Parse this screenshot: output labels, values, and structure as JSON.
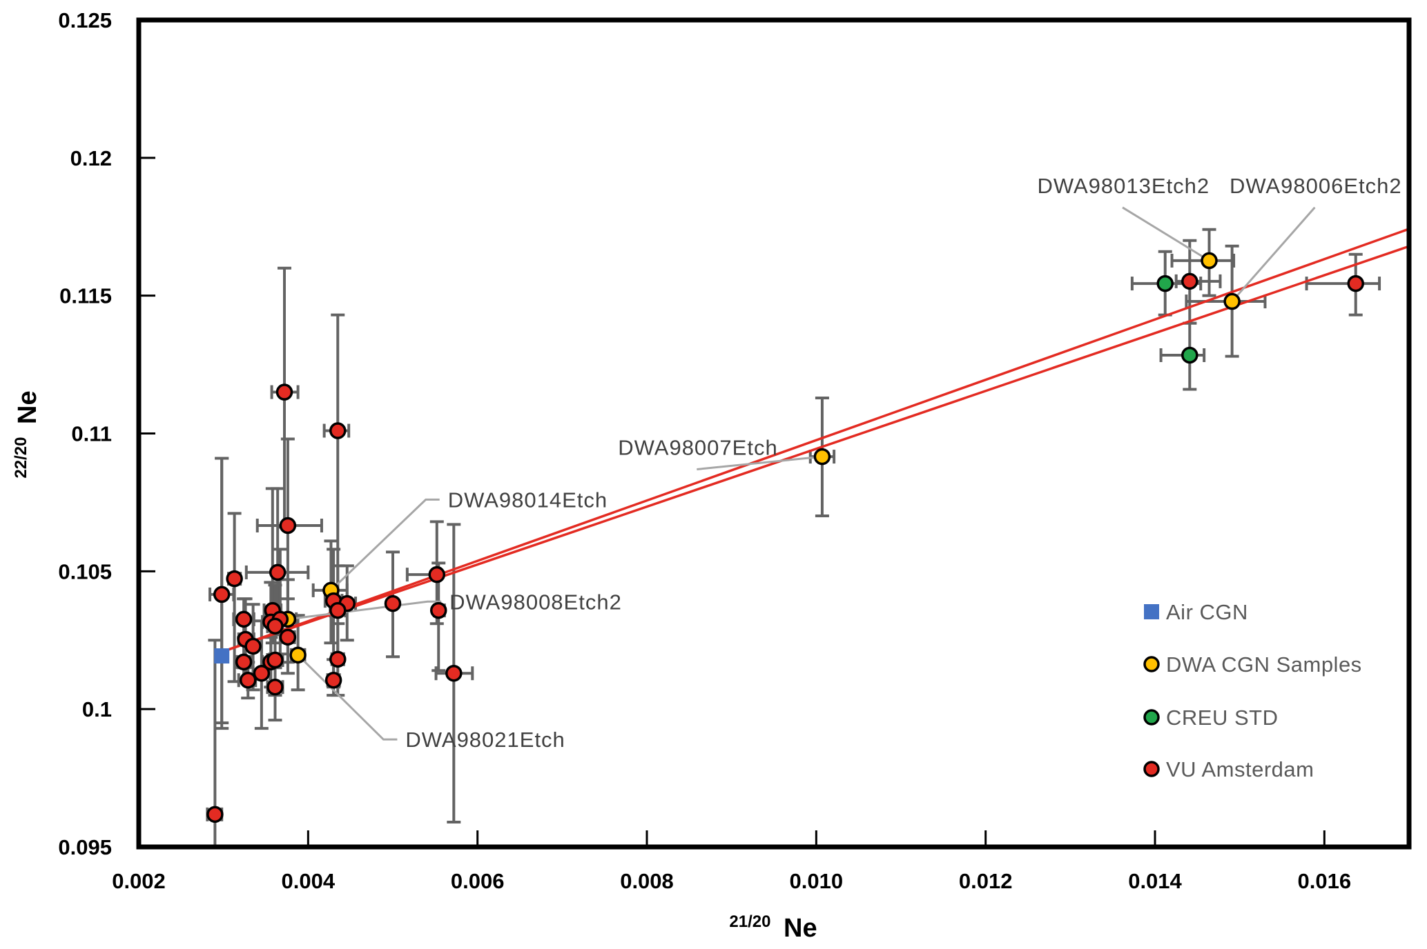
{
  "chart_data": {
    "type": "scatter",
    "title": "",
    "xlabel": "Ne",
    "xlabel_superscript": "21/20",
    "ylabel": "Ne",
    "ylabel_superscript": "22/20",
    "xlim": [
      0.002,
      0.017
    ],
    "ylim": [
      0.095,
      0.125
    ],
    "xticks": [
      0.002,
      0.004,
      0.006,
      0.008,
      0.01,
      0.012,
      0.014,
      0.016
    ],
    "xtick_labels": [
      "0.002",
      "0.004",
      "0.006",
      "0.008",
      "0.010",
      "0.012",
      "0.014",
      "0.016"
    ],
    "yticks": [
      0.095,
      0.1,
      0.105,
      0.11,
      0.115,
      0.12,
      0.125
    ],
    "ytick_labels": [
      "0.095",
      "0.1",
      "0.105",
      "0.11",
      "0.115",
      "0.12",
      "0.125"
    ],
    "grid": false,
    "legend_position": "bottom-right",
    "colors": {
      "Air CGN": "#4472c4",
      "DWA CGN Samples": "#ffc000",
      "CREU STD": "#21a64b",
      "VU Amsterdam": "#e32b22",
      "fit_line": "#e32b22",
      "error_bar": "#636363",
      "leader": "#a6a6a6"
    },
    "series": [
      {
        "name": "Air CGN",
        "marker": "square",
        "points": [
          {
            "x": 0.00298,
            "y": 0.10193,
            "xerr": [
              0.00298,
              0.00298
            ],
            "yerr": [
              0.0993,
              0.1091
            ]
          }
        ]
      },
      {
        "name": "DWA CGN Samples",
        "marker": "circle",
        "points": [
          {
            "x": 0.00376,
            "y": 0.10326,
            "xerr": [
              0.00366,
              0.00386
            ],
            "yerr": [
              0.1017,
              0.1047
            ],
            "label": "DWA98008Etch2"
          },
          {
            "x": 0.00388,
            "y": 0.10196,
            "xerr": [
              0.0038,
              0.00396
            ],
            "yerr": [
              0.1007,
              0.1034
            ],
            "label": "DWA98021Etch"
          },
          {
            "x": 0.00427,
            "y": 0.10431,
            "xerr": [
              0.00406,
              0.00446
            ],
            "yerr": [
              0.1024,
              0.1061
            ],
            "label": "DWA98014Etch"
          },
          {
            "x": 0.01007,
            "y": 0.10916,
            "xerr": [
              0.00993,
              0.01021
            ],
            "yerr": [
              0.10701,
              0.11129
            ],
            "label": "DWA98007Etch"
          },
          {
            "x": 0.01464,
            "y": 0.11627,
            "xerr": [
              0.0142,
              0.01493
            ],
            "yerr": [
              0.115,
              0.1174
            ],
            "label": "DWA98013Etch2"
          },
          {
            "x": 0.01491,
            "y": 0.11479,
            "xerr": [
              0.01437,
              0.0153
            ],
            "yerr": [
              0.1128,
              0.1168
            ],
            "label": "DWA98006Etch2"
          }
        ]
      },
      {
        "name": "CREU STD",
        "marker": "circle",
        "points": [
          {
            "x": 0.01412,
            "y": 0.11544,
            "xerr": [
              0.01373,
              0.01454
            ],
            "yerr": [
              0.1143,
              0.1166
            ]
          },
          {
            "x": 0.01441,
            "y": 0.11284,
            "xerr": [
              0.01407,
              0.01458
            ],
            "yerr": [
              0.1116,
              0.114
            ]
          }
        ]
      },
      {
        "name": "VU Amsterdam",
        "marker": "circle",
        "points": [
          {
            "x": 0.00372,
            "y": 0.1115,
            "xerr": [
              0.00357,
              0.00388
            ],
            "yerr": [
              0.1066,
              0.116
            ]
          },
          {
            "x": 0.00435,
            "y": 0.1101,
            "xerr": [
              0.00419,
              0.00448
            ],
            "yerr": [
              0.1038,
              0.1143
            ]
          },
          {
            "x": 0.00376,
            "y": 0.10666,
            "xerr": [
              0.0034,
              0.00416
            ],
            "yerr": [
              0.1034,
              0.1098
            ]
          },
          {
            "x": 0.00313,
            "y": 0.10473,
            "xerr": [
              0.00306,
              0.0032
            ],
            "yerr": [
              0.101,
              0.1071
            ]
          },
          {
            "x": 0.00298,
            "y": 0.10416,
            "xerr": [
              0.00284,
              0.00312
            ],
            "yerr": [
              0.0995,
              0.1091
            ]
          },
          {
            "x": 0.00364,
            "y": 0.10496,
            "xerr": [
              0.00327,
              0.004
            ],
            "yerr": [
              0.1027,
              0.108
            ]
          },
          {
            "x": 0.00324,
            "y": 0.10326,
            "xerr": [
              0.00312,
              0.00336
            ],
            "yerr": [
              0.1015,
              0.104
            ]
          },
          {
            "x": 0.00326,
            "y": 0.10253,
            "xerr": [
              0.00318,
              0.00336
            ],
            "yerr": [
              0.101,
              0.104
            ]
          },
          {
            "x": 0.00335,
            "y": 0.10228,
            "xerr": [
              0.00325,
              0.00345
            ],
            "yerr": [
              0.1007,
              0.1038
            ]
          },
          {
            "x": 0.00324,
            "y": 0.10171,
            "xerr": [
              0.00316,
              0.00332
            ],
            "yerr": [
              0.101,
              0.1026
            ]
          },
          {
            "x": 0.00329,
            "y": 0.10105,
            "xerr": [
              0.00318,
              0.00338
            ],
            "yerr": [
              0.1004,
              0.1017
            ]
          },
          {
            "x": 0.00345,
            "y": 0.1013,
            "xerr": [
              0.00335,
              0.00355
            ],
            "yerr": [
              0.0993,
              0.1032
            ]
          },
          {
            "x": 0.00356,
            "y": 0.10171,
            "xerr": [
              0.00346,
              0.00366
            ],
            "yerr": [
              0.1008,
              0.1026
            ]
          },
          {
            "x": 0.00361,
            "y": 0.10178,
            "xerr": [
              0.00352,
              0.0037
            ],
            "yerr": [
              0.1005,
              0.103
            ]
          },
          {
            "x": 0.00361,
            "y": 0.1008,
            "xerr": [
              0.00352,
              0.0037
            ],
            "yerr": [
              0.0996,
              0.102
            ]
          },
          {
            "x": 0.00358,
            "y": 0.10358,
            "xerr": [
              0.00348,
              0.00368
            ],
            "yerr": [
              0.1024,
              0.108
            ]
          },
          {
            "x": 0.00356,
            "y": 0.10316,
            "xerr": [
              0.00346,
              0.00366
            ],
            "yerr": [
              0.1018,
              0.1046
            ]
          },
          {
            "x": 0.00367,
            "y": 0.10326,
            "xerr": [
              0.00358,
              0.00376
            ],
            "yerr": [
              0.102,
              0.1058
            ]
          },
          {
            "x": 0.00361,
            "y": 0.10301,
            "xerr": [
              0.00352,
              0.0037
            ],
            "yerr": [
              0.1015,
              0.1045
            ]
          },
          {
            "x": 0.00376,
            "y": 0.10261,
            "xerr": [
              0.00368,
              0.00384
            ],
            "yerr": [
              0.1013,
              0.104
            ]
          },
          {
            "x": 0.0043,
            "y": 0.10393,
            "xerr": [
              0.0042,
              0.0044
            ],
            "yerr": [
              0.1008,
              0.1058
            ]
          },
          {
            "x": 0.00446,
            "y": 0.10383,
            "xerr": [
              0.00436,
              0.00456
            ],
            "yerr": [
              0.1025,
              0.1052
            ]
          },
          {
            "x": 0.00435,
            "y": 0.10358,
            "xerr": [
              0.00426,
              0.00444
            ],
            "yerr": [
              0.102,
              0.1052
            ]
          },
          {
            "x": 0.005,
            "y": 0.10383,
            "xerr": [
              0.005,
              0.005
            ],
            "yerr": [
              0.1019,
              0.1057
            ]
          },
          {
            "x": 0.00435,
            "y": 0.10181,
            "xerr": [
              0.00428,
              0.00442
            ],
            "yerr": [
              0.1005,
              0.1031
            ]
          },
          {
            "x": 0.0043,
            "y": 0.10105,
            "xerr": [
              0.00423,
              0.00437
            ],
            "yerr": [
              0.1005,
              0.1018
            ]
          },
          {
            "x": 0.00552,
            "y": 0.10488,
            "xerr": [
              0.00517,
              0.00553
            ],
            "yerr": [
              0.1031,
              0.1068
            ]
          },
          {
            "x": 0.00554,
            "y": 0.10358,
            "xerr": [
              0.00549,
              0.00561
            ],
            "yerr": [
              0.1014,
              0.1053
            ]
          },
          {
            "x": 0.00572,
            "y": 0.1013,
            "xerr": [
              0.00551,
              0.00594
            ],
            "yerr": [
              0.0959,
              0.1067
            ]
          },
          {
            "x": 0.0029,
            "y": 0.09618,
            "xerr": [
              0.00281,
              0.00298
            ],
            "yerr": [
              0.095,
              0.1025
            ]
          },
          {
            "x": 0.01441,
            "y": 0.11552,
            "xerr": [
              0.01425,
              0.01477
            ],
            "yerr": [
              0.114,
              0.117
            ]
          },
          {
            "x": 0.01637,
            "y": 0.11544,
            "xerr": [
              0.01579,
              0.01665
            ],
            "yerr": [
              0.1143,
              0.1165
            ]
          }
        ]
      }
    ],
    "fit_lines": [
      {
        "name": "fit-upper",
        "x": [
          0.00306,
          0.017
        ],
        "y": [
          0.10216,
          0.11742
        ]
      },
      {
        "name": "fit-lower",
        "x": [
          0.00306,
          0.017
        ],
        "y": [
          0.10216,
          0.11679
        ]
      }
    ],
    "annotations": [
      {
        "text": "DWA98014Etch",
        "target": "DWA98014Etch",
        "at": [
          0.00565,
          0.1076
        ]
      },
      {
        "text": "DWA98008Etch2",
        "target": "DWA98008Etch2",
        "at": [
          0.00567,
          0.1039
        ]
      },
      {
        "text": "DWA98021Etch",
        "target": "DWA98021Etch",
        "at": [
          0.00515,
          0.0989
        ]
      },
      {
        "text": "DWA98007Etch",
        "target": "DWA98007Etch",
        "at": [
          0.00766,
          0.1095
        ]
      },
      {
        "text": "DWA98013Etch2",
        "target": "DWA98013Etch2",
        "at": [
          0.01261,
          0.119
        ]
      },
      {
        "text": "DWA98006Etch2",
        "target": "DWA98006Etch2",
        "at": [
          0.01488,
          0.119
        ]
      }
    ],
    "legend": [
      "Air CGN",
      "DWA CGN Samples",
      "CREU STD",
      "VU Amsterdam"
    ]
  }
}
